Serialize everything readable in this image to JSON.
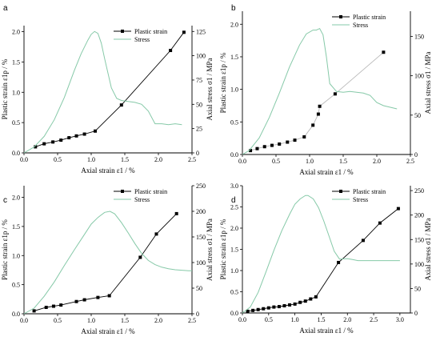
{
  "chart_data": [
    {
      "type": "line",
      "panel_label": "a",
      "xlabel": "Axial strain ε1 / %",
      "ylabel_left": "Plastic strain ε1p / %",
      "ylabel_right": "Axial stress σ1 / MPa",
      "xlim": [
        0,
        2.5
      ],
      "ylim_left": [
        0,
        2.1
      ],
      "ylim_right": [
        0,
        131
      ],
      "x_ticks": [
        "0.0",
        "0.5",
        "1.0",
        "1.5",
        "2.0",
        "2.5"
      ],
      "x_tick_values": [
        0,
        0.5,
        1.0,
        1.5,
        2.0,
        2.5
      ],
      "yl_ticks": [
        "0.0",
        "0.5",
        "1.0",
        "1.5",
        "2.0"
      ],
      "yl_tick_values": [
        0,
        0.5,
        1.0,
        1.5,
        2.0
      ],
      "yr_ticks": [
        "0",
        "25",
        "50",
        "75",
        "100",
        "125"
      ],
      "yr_tick_values": [
        0,
        25,
        50,
        75,
        100,
        125
      ],
      "legend": {
        "position": "top-right",
        "entries": [
          "Plastic strain",
          "Stress"
        ]
      },
      "series": [
        {
          "name": "Plastic strain",
          "axis": "left",
          "style": "dark",
          "x": [
            0.17,
            0.3,
            0.43,
            0.55,
            0.67,
            0.78,
            0.9,
            1.06,
            1.45,
            2.18,
            2.38
          ],
          "y": [
            0.1,
            0.15,
            0.18,
            0.21,
            0.25,
            0.28,
            0.31,
            0.36,
            0.79,
            1.69,
            1.99
          ]
        },
        {
          "name": "Stress",
          "axis": "right",
          "x": [
            0.0,
            0.15,
            0.3,
            0.45,
            0.6,
            0.75,
            0.85,
            0.95,
            1.0,
            1.05,
            1.1,
            1.15,
            1.2,
            1.3,
            1.38,
            1.45,
            1.55,
            1.65,
            1.75,
            1.85,
            1.95,
            2.05,
            2.15,
            2.25,
            2.35
          ],
          "y": [
            0,
            6,
            17,
            34,
            57,
            85,
            102,
            116,
            122,
            125,
            123,
            113,
            97,
            67,
            56,
            54,
            53,
            52,
            50,
            43,
            30,
            30,
            29,
            30,
            29
          ]
        }
      ]
    },
    {
      "type": "line",
      "panel_label": "b",
      "xlabel": "Axial strain ε1 / %",
      "ylabel_left": "Plastic strain ε1p / %",
      "ylabel_right": "Axial stress σ1 / MPa",
      "xlim": [
        0,
        2.5
      ],
      "ylim_left": [
        0,
        2.2
      ],
      "ylim_right": [
        0,
        182
      ],
      "x_ticks": [
        "0.0",
        "0.5",
        "1.0",
        "1.5",
        "2.0",
        "2.5"
      ],
      "x_tick_values": [
        0,
        0.5,
        1.0,
        1.5,
        2.0,
        2.5
      ],
      "yl_ticks": [
        "0.0",
        "0.5",
        "1.0",
        "1.5",
        "2.0"
      ],
      "yl_tick_values": [
        0,
        0.5,
        1.0,
        1.5,
        2.0
      ],
      "yr_ticks": [
        "0",
        "50",
        "100",
        "150"
      ],
      "yr_tick_values": [
        0,
        50,
        100,
        150
      ],
      "legend": {
        "position": "top-right",
        "entries": [
          "Plastic strain",
          "Stress"
        ]
      },
      "series": [
        {
          "name": "Plastic strain",
          "axis": "left",
          "style": "light",
          "x": [
            0.12,
            0.22,
            0.33,
            0.44,
            0.55,
            0.67,
            0.78,
            0.92,
            1.05,
            1.13,
            1.15,
            1.38,
            2.1
          ],
          "y": [
            0.06,
            0.09,
            0.12,
            0.14,
            0.16,
            0.19,
            0.22,
            0.27,
            0.45,
            0.62,
            0.74,
            0.93,
            1.57
          ]
        },
        {
          "name": "Stress",
          "axis": "right",
          "x": [
            0.0,
            0.1,
            0.25,
            0.4,
            0.55,
            0.7,
            0.85,
            0.95,
            1.05,
            1.1,
            1.15,
            1.2,
            1.25,
            1.3,
            1.4,
            1.5,
            1.6,
            1.7,
            1.8,
            1.9,
            2.0,
            2.1,
            2.2,
            2.3
          ],
          "y": [
            0,
            5,
            21,
            47,
            78,
            111,
            139,
            153,
            158,
            158,
            160,
            152,
            124,
            90,
            80,
            79,
            80,
            79,
            78,
            75,
            66,
            62,
            60,
            58
          ]
        }
      ]
    },
    {
      "type": "line",
      "panel_label": "c",
      "xlabel": "Axial strain ε1 / %",
      "ylabel_left": "Plastic strain ε1p / %",
      "ylabel_right": "Axial stress σ1 / MPa",
      "xlim": [
        0,
        2.5
      ],
      "ylim_left": [
        0,
        2.2
      ],
      "ylim_right": [
        0,
        250
      ],
      "x_ticks": [
        "0.0",
        "0.5",
        "1.0",
        "1.5",
        "2.0",
        "2.5"
      ],
      "x_tick_values": [
        0,
        0.5,
        1.0,
        1.5,
        2.0,
        2.5
      ],
      "yl_ticks": [
        "0.0",
        "0.5",
        "1.0",
        "1.5",
        "2.0"
      ],
      "yl_tick_values": [
        0,
        0.5,
        1.0,
        1.5,
        2.0
      ],
      "yr_ticks": [
        "0",
        "50",
        "100",
        "150",
        "200",
        "250"
      ],
      "yr_tick_values": [
        0,
        50,
        100,
        150,
        200,
        250
      ],
      "legend": {
        "position": "top-right",
        "entries": [
          "Plastic strain",
          "Stress"
        ]
      },
      "series": [
        {
          "name": "Plastic strain",
          "axis": "left",
          "style": "dark",
          "x": [
            0.15,
            0.33,
            0.44,
            0.55,
            0.78,
            0.9,
            1.1,
            1.27,
            1.73,
            1.97,
            2.27
          ],
          "y": [
            0.05,
            0.11,
            0.13,
            0.15,
            0.21,
            0.24,
            0.28,
            0.31,
            0.97,
            1.37,
            1.72
          ]
        },
        {
          "name": "Stress",
          "axis": "right",
          "x": [
            0.0,
            0.15,
            0.3,
            0.45,
            0.6,
            0.75,
            0.9,
            1.0,
            1.1,
            1.2,
            1.28,
            1.35,
            1.45,
            1.55,
            1.65,
            1.75,
            1.85,
            1.95,
            2.05,
            2.15,
            2.25,
            2.35,
            2.45,
            2.5
          ],
          "y": [
            0,
            11,
            34,
            62,
            94,
            125,
            155,
            175,
            188,
            198,
            200,
            195,
            178,
            158,
            137,
            118,
            104,
            96,
            91,
            88,
            86,
            85,
            84,
            84
          ]
        }
      ]
    },
    {
      "type": "line",
      "panel_label": "d",
      "xlabel": "Axial strain ε1 / %",
      "ylabel_left": "Plastic strain ε1p / %",
      "ylabel_right": "Axial stress σ1 / MPa",
      "xlim": [
        0,
        3.2
      ],
      "ylim_left": [
        0,
        3.0
      ],
      "ylim_right": [
        0,
        260
      ],
      "x_ticks": [
        "0.0",
        "0.5",
        "1.0",
        "1.5",
        "2.0",
        "2.5",
        "3.0"
      ],
      "x_tick_values": [
        0,
        0.5,
        1.0,
        1.5,
        2.0,
        2.5,
        3.0
      ],
      "yl_ticks": [
        "0.0",
        "0.5",
        "1.0",
        "1.5",
        "2.0",
        "2.5",
        "3.0"
      ],
      "yl_tick_values": [
        0,
        0.5,
        1.0,
        1.5,
        2.0,
        2.5,
        3.0
      ],
      "yr_ticks": [
        "0",
        "50",
        "100",
        "150",
        "200",
        "250"
      ],
      "yr_tick_values": [
        0,
        50,
        100,
        150,
        200,
        250
      ],
      "legend": {
        "position": "top-right",
        "entries": [
          "Plastic strain",
          "Stress"
        ]
      },
      "series": [
        {
          "name": "Plastic strain",
          "axis": "left",
          "style": "dark",
          "x": [
            0.1,
            0.2,
            0.3,
            0.4,
            0.5,
            0.6,
            0.7,
            0.8,
            0.9,
            1.0,
            1.1,
            1.2,
            1.3,
            1.4,
            1.83,
            2.3,
            2.62,
            2.97
          ],
          "y": [
            0.04,
            0.06,
            0.08,
            0.1,
            0.12,
            0.14,
            0.15,
            0.17,
            0.19,
            0.21,
            0.25,
            0.28,
            0.33,
            0.38,
            1.19,
            1.71,
            2.12,
            2.46
          ]
        },
        {
          "name": "Stress",
          "axis": "right",
          "x": [
            0.0,
            0.15,
            0.3,
            0.45,
            0.6,
            0.75,
            0.9,
            1.0,
            1.1,
            1.2,
            1.25,
            1.35,
            1.45,
            1.55,
            1.65,
            1.75,
            1.85,
            2.0,
            2.1,
            2.2,
            2.4,
            2.6,
            2.8,
            3.0
          ],
          "y": [
            0,
            12,
            42,
            84,
            128,
            168,
            202,
            222,
            233,
            240,
            240,
            233,
            215,
            188,
            157,
            126,
            110,
            111,
            109,
            107,
            107,
            107,
            107,
            107
          ]
        }
      ]
    }
  ]
}
